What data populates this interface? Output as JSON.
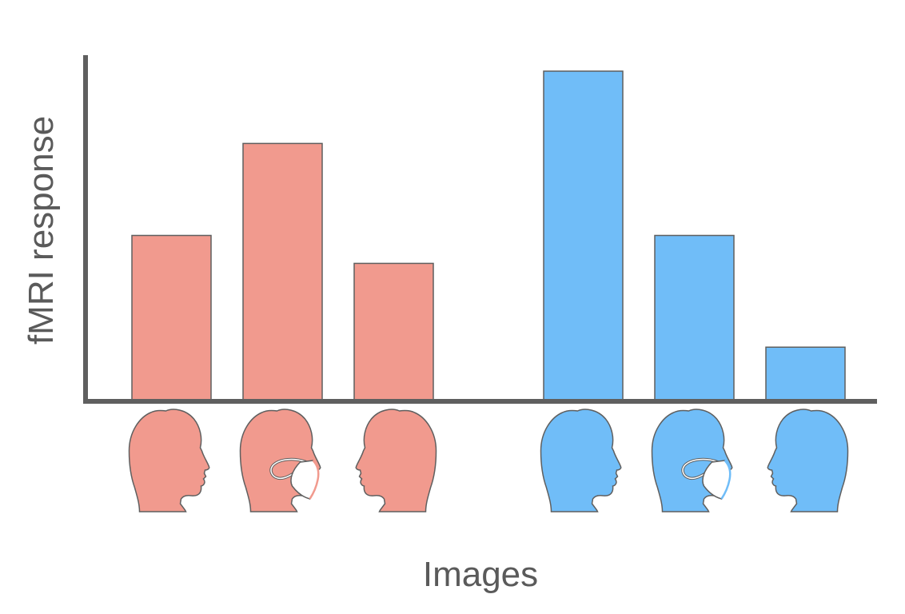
{
  "chart_data": {
    "type": "bar",
    "xlabel": "Images",
    "ylabel": "fMRI response",
    "ylim": [
      0,
      100
    ],
    "tick_labels_shown": false,
    "legend": "none",
    "grid": false,
    "colors": {
      "red_group": "#f19a8e",
      "blue_group": "#70bdf8",
      "bar_stroke": "#5f5f5f",
      "axis": "#5f5f5f"
    },
    "groups": [
      {
        "color": "red_group",
        "bars": [
          {
            "category": "face",
            "icon": "head-profile-right-icon",
            "value": 50
          },
          {
            "category": "masked face",
            "icon": "head-profile-right-with-mask-icon",
            "value": 78
          },
          {
            "category": "face",
            "icon": "head-profile-left-icon",
            "value": 41.5
          }
        ]
      },
      {
        "color": "blue_group",
        "bars": [
          {
            "category": "face",
            "icon": "head-profile-right-icon",
            "value": 100
          },
          {
            "category": "masked face",
            "icon": "head-profile-right-with-mask-icon",
            "value": 50
          },
          {
            "category": "face",
            "icon": "head-profile-left-icon",
            "value": 16
          }
        ]
      }
    ]
  }
}
